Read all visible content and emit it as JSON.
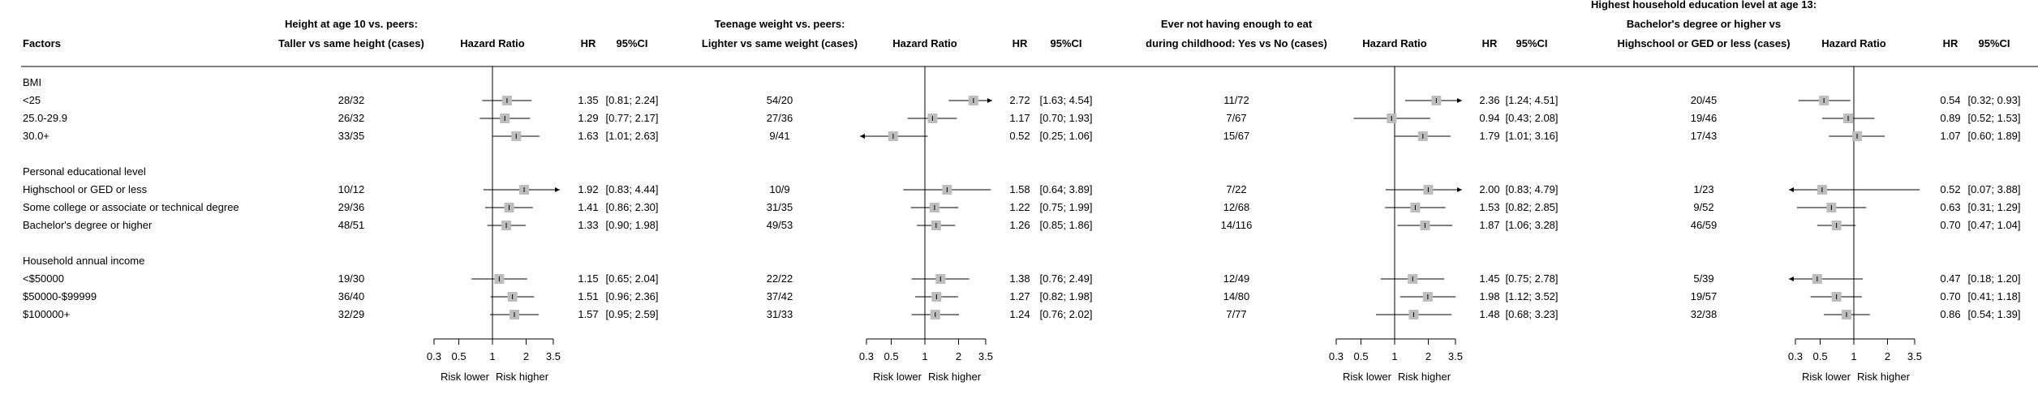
{
  "chart_data": {
    "type": "forest",
    "factors_label": "Factors",
    "col_hazard_ratio": "Hazard Ratio",
    "col_hr": "HR",
    "col_ci": "95%CI",
    "axis_ticks": [
      "0.3",
      "0.5",
      "1",
      "2",
      "3.5"
    ],
    "axis_labels": {
      "lower": "Risk lower",
      "higher": "Risk higher"
    },
    "xlim": [
      0.3,
      3.5
    ],
    "log_scale": true,
    "rows": [
      {
        "type": "group",
        "label": "BMI"
      },
      {
        "type": "item",
        "label": "<25"
      },
      {
        "type": "item",
        "label": "25.0-29.9"
      },
      {
        "type": "item",
        "label": "30.0+"
      },
      {
        "type": "blank"
      },
      {
        "type": "group",
        "label": "Personal educational level"
      },
      {
        "type": "item",
        "label": "Highschool or GED or less"
      },
      {
        "type": "item",
        "label": "Some college or associate or technical degree"
      },
      {
        "type": "item",
        "label": "Bachelor's degree or higher"
      },
      {
        "type": "blank"
      },
      {
        "type": "group",
        "label": "Household annual income"
      },
      {
        "type": "item",
        "label": "<$50000"
      },
      {
        "type": "item",
        "label": "$50000-$99999"
      },
      {
        "type": "item",
        "label": "$100000+"
      }
    ],
    "panels": [
      {
        "header": [
          "Height at age 10 vs. peers:",
          "Taller vs same height (cases)"
        ],
        "entries": [
          {
            "cases": "28/32",
            "hr": 1.35,
            "hr_text": "1.35",
            "lo": 0.81,
            "hi": 2.24,
            "ci_text": "[0.81; 2.24]"
          },
          {
            "cases": "26/32",
            "hr": 1.29,
            "hr_text": "1.29",
            "lo": 0.77,
            "hi": 2.17,
            "ci_text": "[0.77; 2.17]"
          },
          {
            "cases": "33/35",
            "hr": 1.63,
            "hr_text": "1.63",
            "lo": 1.01,
            "hi": 2.63,
            "ci_text": "[1.01; 2.63]"
          },
          {
            "cases": "10/12",
            "hr": 1.92,
            "hr_text": "1.92",
            "lo": 0.83,
            "hi": 4.44,
            "ci_text": "[0.83; 4.44]"
          },
          {
            "cases": "29/36",
            "hr": 1.41,
            "hr_text": "1.41",
            "lo": 0.86,
            "hi": 2.3,
            "ci_text": "[0.86; 2.30]"
          },
          {
            "cases": "48/51",
            "hr": 1.33,
            "hr_text": "1.33",
            "lo": 0.9,
            "hi": 1.98,
            "ci_text": "[0.90; 1.98]"
          },
          {
            "cases": "19/30",
            "hr": 1.15,
            "hr_text": "1.15",
            "lo": 0.65,
            "hi": 2.04,
            "ci_text": "[0.65; 2.04]"
          },
          {
            "cases": "36/40",
            "hr": 1.51,
            "hr_text": "1.51",
            "lo": 0.96,
            "hi": 2.36,
            "ci_text": "[0.96; 2.36]"
          },
          {
            "cases": "32/29",
            "hr": 1.57,
            "hr_text": "1.57",
            "lo": 0.95,
            "hi": 2.59,
            "ci_text": "[0.95; 2.59]"
          }
        ]
      },
      {
        "header": [
          "Teenage weight vs. peers:",
          "Lighter vs same weight (cases)"
        ],
        "entries": [
          {
            "cases": "54/20",
            "hr": 2.72,
            "hr_text": "2.72",
            "lo": 1.63,
            "hi": 4.54,
            "ci_text": "[1.63; 4.54]"
          },
          {
            "cases": "27/36",
            "hr": 1.17,
            "hr_text": "1.17",
            "lo": 0.7,
            "hi": 1.93,
            "ci_text": "[0.70; 1.93]"
          },
          {
            "cases": "9/41",
            "hr": 0.52,
            "hr_text": "0.52",
            "lo": 0.25,
            "hi": 1.06,
            "ci_text": "[0.25; 1.06]"
          },
          {
            "cases": "10/9",
            "hr": 1.58,
            "hr_text": "1.58",
            "lo": 0.64,
            "hi": 3.89,
            "ci_text": "[0.64; 3.89]"
          },
          {
            "cases": "31/35",
            "hr": 1.22,
            "hr_text": "1.22",
            "lo": 0.75,
            "hi": 1.99,
            "ci_text": "[0.75; 1.99]"
          },
          {
            "cases": "49/53",
            "hr": 1.26,
            "hr_text": "1.26",
            "lo": 0.85,
            "hi": 1.86,
            "ci_text": "[0.85; 1.86]"
          },
          {
            "cases": "22/22",
            "hr": 1.38,
            "hr_text": "1.38",
            "lo": 0.76,
            "hi": 2.49,
            "ci_text": "[0.76; 2.49]"
          },
          {
            "cases": "37/42",
            "hr": 1.27,
            "hr_text": "1.27",
            "lo": 0.82,
            "hi": 1.98,
            "ci_text": "[0.82; 1.98]"
          },
          {
            "cases": "31/33",
            "hr": 1.24,
            "hr_text": "1.24",
            "lo": 0.76,
            "hi": 2.02,
            "ci_text": "[0.76; 2.02]"
          }
        ]
      },
      {
        "header": [
          "Ever not having enough to eat",
          "during childhood: Yes vs No (cases)"
        ],
        "entries": [
          {
            "cases": "11/72",
            "hr": 2.36,
            "hr_text": "2.36",
            "lo": 1.24,
            "hi": 4.51,
            "ci_text": "[1.24; 4.51]"
          },
          {
            "cases": "7/67",
            "hr": 0.94,
            "hr_text": "0.94",
            "lo": 0.43,
            "hi": 2.08,
            "ci_text": "[0.43; 2.08]"
          },
          {
            "cases": "15/67",
            "hr": 1.79,
            "hr_text": "1.79",
            "lo": 1.01,
            "hi": 3.16,
            "ci_text": "[1.01; 3.16]"
          },
          {
            "cases": "7/22",
            "hr": 2.0,
            "hr_text": "2.00",
            "lo": 0.83,
            "hi": 4.79,
            "ci_text": "[0.83; 4.79]"
          },
          {
            "cases": "12/68",
            "hr": 1.53,
            "hr_text": "1.53",
            "lo": 0.82,
            "hi": 2.85,
            "ci_text": "[0.82; 2.85]"
          },
          {
            "cases": "14/116",
            "hr": 1.87,
            "hr_text": "1.87",
            "lo": 1.06,
            "hi": 3.28,
            "ci_text": "[1.06; 3.28]"
          },
          {
            "cases": "12/49",
            "hr": 1.45,
            "hr_text": "1.45",
            "lo": 0.75,
            "hi": 2.78,
            "ci_text": "[0.75; 2.78]"
          },
          {
            "cases": "14/80",
            "hr": 1.98,
            "hr_text": "1.98",
            "lo": 1.12,
            "hi": 3.52,
            "ci_text": "[1.12; 3.52]"
          },
          {
            "cases": "7/77",
            "hr": 1.48,
            "hr_text": "1.48",
            "lo": 0.68,
            "hi": 3.23,
            "ci_text": "[0.68; 3.23]"
          }
        ]
      },
      {
        "header": [
          "Highest household education level at age 13:",
          "Bachelor's degree or higher vs",
          "Highschool or GED or less (cases)"
        ],
        "entries": [
          {
            "cases": "20/45",
            "hr": 0.54,
            "hr_text": "0.54",
            "lo": 0.32,
            "hi": 0.93,
            "ci_text": "[0.32; 0.93]"
          },
          {
            "cases": "19/46",
            "hr": 0.89,
            "hr_text": "0.89",
            "lo": 0.52,
            "hi": 1.53,
            "ci_text": "[0.52; 1.53]"
          },
          {
            "cases": "17/43",
            "hr": 1.07,
            "hr_text": "1.07",
            "lo": 0.6,
            "hi": 1.89,
            "ci_text": "[0.60; 1.89]"
          },
          {
            "cases": "1/23",
            "hr": 0.52,
            "hr_text": "0.52",
            "lo": 0.07,
            "hi": 3.88,
            "ci_text": "[0.07; 3.88]"
          },
          {
            "cases": "9/52",
            "hr": 0.63,
            "hr_text": "0.63",
            "lo": 0.31,
            "hi": 1.29,
            "ci_text": "[0.31; 1.29]"
          },
          {
            "cases": "46/59",
            "hr": 0.7,
            "hr_text": "0.70",
            "lo": 0.47,
            "hi": 1.04,
            "ci_text": "[0.47; 1.04]"
          },
          {
            "cases": "5/39",
            "hr": 0.47,
            "hr_text": "0.47",
            "lo": 0.18,
            "hi": 1.2,
            "ci_text": "[0.18; 1.20]"
          },
          {
            "cases": "19/57",
            "hr": 0.7,
            "hr_text": "0.70",
            "lo": 0.41,
            "hi": 1.18,
            "ci_text": "[0.41; 1.18]"
          },
          {
            "cases": "32/38",
            "hr": 0.86,
            "hr_text": "0.86",
            "lo": 0.54,
            "hi": 1.39,
            "ci_text": "[0.54; 1.39]"
          }
        ]
      }
    ]
  }
}
